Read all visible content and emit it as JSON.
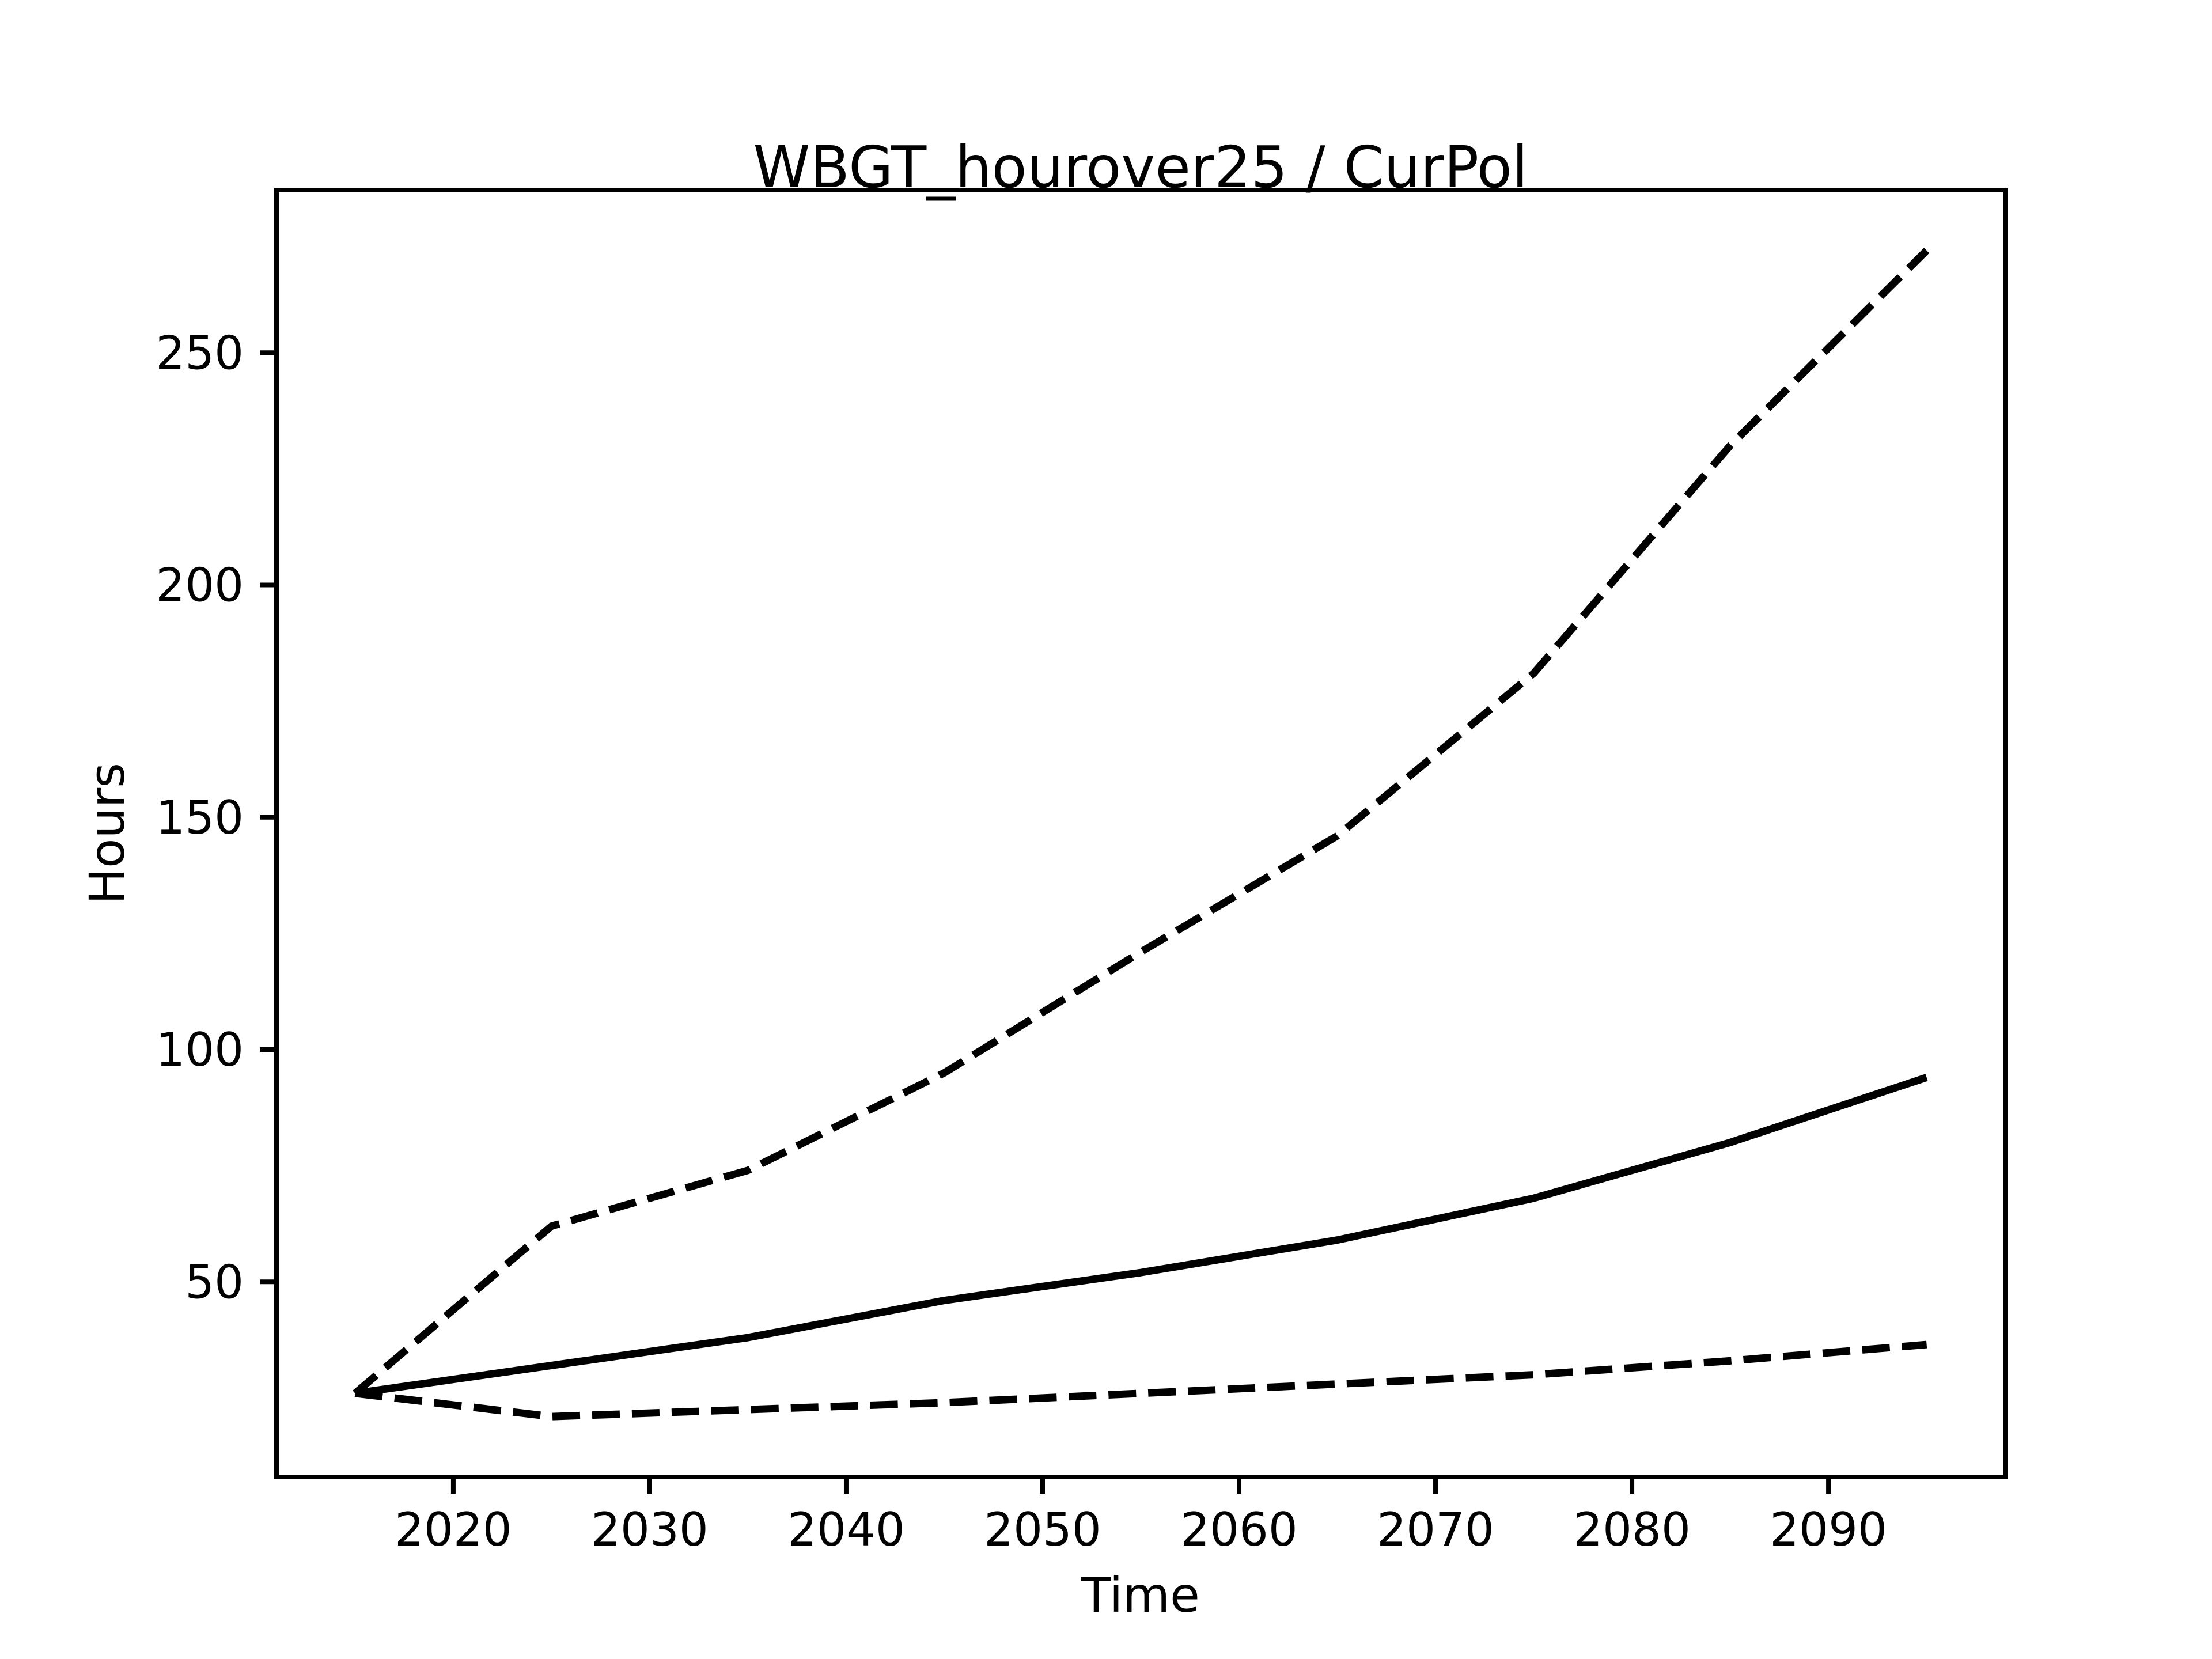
{
  "figure": {
    "background_color": "#ffffff",
    "line_color": "#000000"
  },
  "chart_data": {
    "type": "line",
    "title": "WBGT_hourover25 / CurPol",
    "xlabel": "Time",
    "ylabel": "Hours",
    "x": [
      2015,
      2025,
      2035,
      2045,
      2055,
      2065,
      2075,
      2085,
      2095
    ],
    "series": [
      {
        "name": "upper-dashed",
        "style": "dashed",
        "values": [
          26,
          62,
          74,
          95,
          121,
          146,
          181,
          230,
          272
        ]
      },
      {
        "name": "median-solid",
        "style": "solid",
        "values": [
          26,
          32,
          38,
          46,
          52,
          59,
          68,
          80,
          94
        ]
      },
      {
        "name": "lower-dashed",
        "style": "dashed",
        "values": [
          26,
          21,
          22.5,
          24,
          26,
          28,
          30,
          33,
          36.5
        ]
      }
    ],
    "xlim": [
      2011,
      2099
    ],
    "ylim": [
      8,
      285
    ],
    "xticks": [
      2020,
      2030,
      2040,
      2050,
      2060,
      2070,
      2080,
      2090
    ],
    "yticks": [
      50,
      100,
      150,
      200,
      250
    ],
    "grid": false,
    "legend": null
  }
}
